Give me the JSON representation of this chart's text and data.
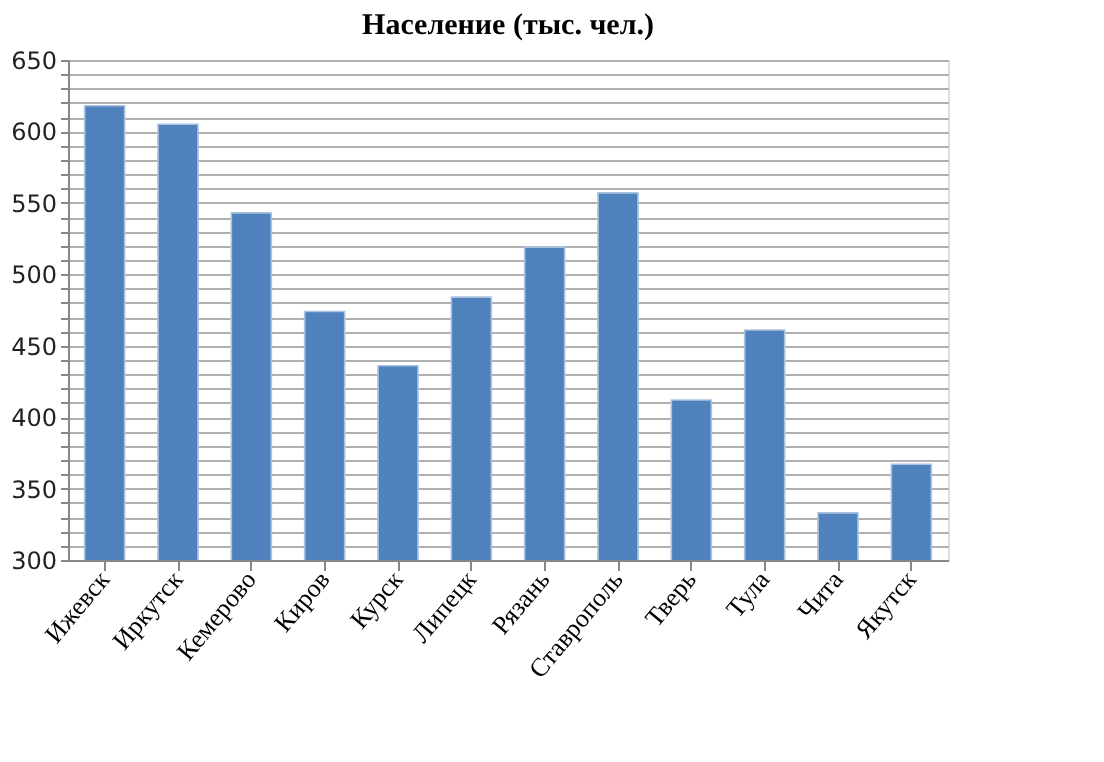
{
  "chart_data": {
    "type": "bar",
    "title": "Население (тыс. чел.)",
    "categories": [
      "Ижевск",
      "Иркутск",
      "Кемерово",
      "Киров",
      "Курск",
      "Липецк",
      "Рязань",
      "Ставрополь",
      "Тверь",
      "Тула",
      "Чита",
      "Якутск"
    ],
    "values": [
      618,
      605,
      543,
      474,
      436,
      484,
      519,
      557,
      412,
      461,
      333,
      367
    ],
    "color": "#4f81bd",
    "ylim": [
      300,
      650
    ],
    "yticks": [
      300,
      {
        "value": 310,
        "label": null
      },
      {
        "value": 320,
        "label": null
      },
      {
        "value": 330,
        "label": null
      },
      {
        "value": 340,
        "label": null
      },
      350,
      {
        "value": 360,
        "label": null
      },
      {
        "value": 370,
        "label": null
      },
      {
        "value": 380,
        "label": null
      },
      {
        "value": 390,
        "label": null
      },
      400,
      {
        "value": 410,
        "label": null
      },
      {
        "value": 420,
        "label": null
      },
      {
        "value": 430,
        "label": null
      },
      {
        "value": 440,
        "label": null
      },
      450,
      {
        "value": 460,
        "label": null
      },
      {
        "value": 470,
        "label": null
      },
      {
        "value": 480,
        "label": null
      },
      {
        "value": 490,
        "label": null
      },
      500,
      {
        "value": 510,
        "label": null
      },
      {
        "value": 520,
        "label": null
      },
      {
        "value": 530,
        "label": null
      },
      {
        "value": 540,
        "label": null
      },
      550,
      {
        "value": 560,
        "label": null
      },
      {
        "value": 570,
        "label": null
      },
      {
        "value": 580,
        "label": null
      },
      {
        "value": 590,
        "label": null
      },
      600,
      {
        "value": 610,
        "label": null
      },
      {
        "value": 620,
        "label": null
      },
      {
        "value": 630,
        "label": null
      },
      {
        "value": 640,
        "label": null
      },
      650
    ],
    "grid": "y"
  }
}
